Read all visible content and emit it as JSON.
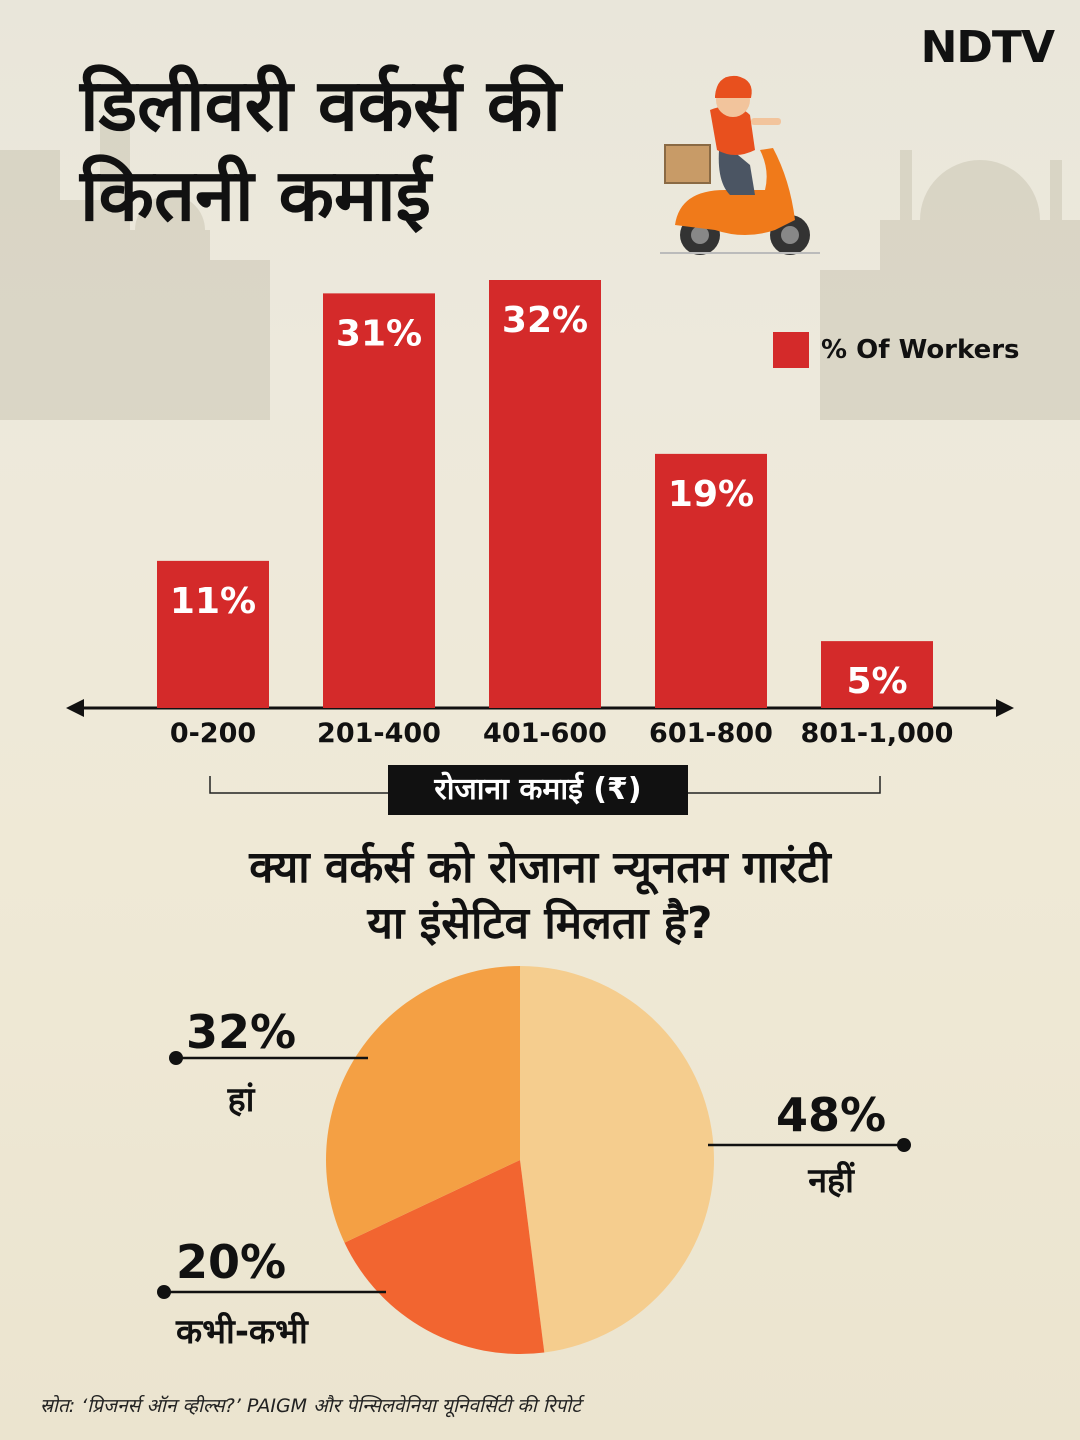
{
  "brand": {
    "logo_text": "NDTV"
  },
  "title": {
    "line1": "डिलीवरी वर्कर्स की",
    "line2": "कितनी कमाई"
  },
  "colors": {
    "bar": "#d42a2a",
    "pie_yes": "#f4a044",
    "pie_no": "#f5cd8e",
    "pie_sometimes": "#f26530"
  },
  "icons": {
    "rider": "delivery-rider-scooter-icon"
  },
  "chart_data": [
    {
      "type": "bar",
      "categories": [
        "0-200",
        "201-400",
        "401-600",
        "601-800",
        "801-1,000"
      ],
      "series": [
        {
          "name": "% Of Workers",
          "values": [
            11,
            31,
            32,
            19,
            5
          ]
        }
      ],
      "value_labels": [
        "11%",
        "31%",
        "32%",
        "19%",
        "5%"
      ],
      "xlabel": "रोजाना कमाई (₹)",
      "ylabel": "",
      "ylim": [
        0,
        32
      ],
      "legend": "top-right",
      "grid": false
    },
    {
      "type": "pie",
      "title": "क्या वर्कर्स को रोजाना न्यूनतम  गारंटी या इंसेटिव मिलता है?",
      "title_lines": [
        "क्या वर्कर्स को रोजाना न्यूनतम  गारंटी",
        "या इंसेटिव मिलता है?"
      ],
      "slices": [
        {
          "label": "नहीं",
          "value": 48,
          "value_label": "48%"
        },
        {
          "label": "कभी-कभी",
          "value": 20,
          "value_label": "20%"
        },
        {
          "label": "हां",
          "value": 32,
          "value_label": "32%"
        }
      ]
    }
  ],
  "footer": {
    "source": "स्रोत: ‘प्रिजनर्स ऑन व्हील्स?’ PAIGM और पेन्सिलवेनिया यूनिवर्सिटी की रिपोर्ट"
  }
}
